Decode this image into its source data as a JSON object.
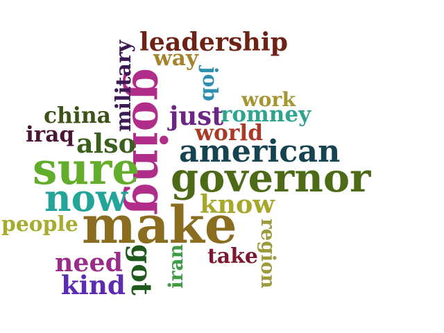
{
  "words": [
    {
      "text": "make",
      "color": "#8a6d1e"
    },
    {
      "text": "governor",
      "color": "#4d6a16"
    },
    {
      "text": "going",
      "color": "#b02d8a"
    },
    {
      "text": "sure",
      "color": "#62ad2b"
    },
    {
      "text": "american",
      "color": "#15434f"
    },
    {
      "text": "now",
      "color": "#25a59a"
    },
    {
      "text": "leadership",
      "color": "#6d2215"
    },
    {
      "text": "romney",
      "color": "#30a38f"
    },
    {
      "text": "just",
      "color": "#6a2585"
    },
    {
      "text": "military",
      "color": "#3c1b55"
    },
    {
      "text": "know",
      "color": "#a7a82b"
    },
    {
      "text": "china",
      "color": "#3c5216"
    },
    {
      "text": "also",
      "color": "#3b5f1d"
    },
    {
      "text": "world",
      "color": "#a83b27"
    },
    {
      "text": "need",
      "color": "#9a2d8a"
    },
    {
      "text": "kind",
      "color": "#5b2bb0"
    },
    {
      "text": "got",
      "color": "#1f5a1c"
    },
    {
      "text": "take",
      "color": "#7e1830"
    },
    {
      "text": "people",
      "color": "#a7ab2e"
    },
    {
      "text": "iraq",
      "color": "#4a1636"
    },
    {
      "text": "way",
      "color": "#a4832a"
    },
    {
      "text": "job",
      "color": "#2d8fb0"
    },
    {
      "text": "work",
      "color": "#a49530"
    },
    {
      "text": "iran",
      "color": "#3f9b45"
    },
    {
      "text": "region",
      "color": "#9c9b3b"
    }
  ]
}
